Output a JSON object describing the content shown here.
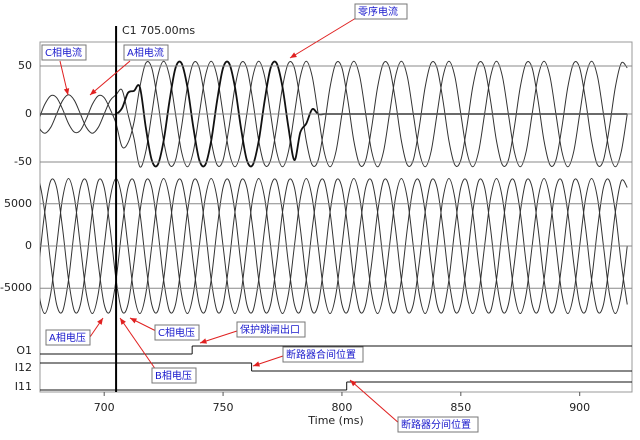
{
  "chart_data": {
    "type": "waveform",
    "title": "C1 705.00ms",
    "cursor": 705,
    "xlabel": "Time (ms)",
    "xlim": [
      673,
      922
    ],
    "xticks": [
      700,
      750,
      800,
      850,
      900
    ],
    "x": [
      670,
      672.5,
      675,
      677.5,
      680,
      682.5,
      685,
      687.5,
      690,
      692.5,
      695,
      697.5,
      700,
      702.5,
      705,
      707.5,
      710,
      712.5,
      715,
      717.5,
      720,
      722.5,
      725,
      727.5,
      730,
      732.5,
      735,
      737.5,
      740,
      742.5,
      745,
      747.5,
      750,
      752.5,
      755,
      757.5,
      760,
      762.5,
      765,
      767.5,
      770,
      772.5,
      775,
      777.5,
      780,
      782.5,
      785,
      787.5,
      790,
      792.5,
      795,
      797.5,
      800,
      802.5,
      805,
      807.5,
      810,
      812.5,
      815,
      817.5,
      820,
      822.5,
      825,
      827.5,
      830,
      832.5,
      835,
      837.5,
      840,
      842.5,
      845,
      847.5,
      850,
      852.5,
      855,
      857.5,
      860,
      862.5,
      865,
      867.5,
      870,
      872.5,
      875,
      877.5,
      880,
      882.5,
      885,
      887.5,
      890,
      892.5,
      895,
      897.5,
      900,
      902.5,
      905,
      907.5,
      910,
      912.5,
      915,
      917.5,
      920
    ],
    "panels": [
      {
        "ylim": [
          -75,
          75
        ],
        "yticks": [
          -50,
          0,
          50
        ],
        "series": [
          {
            "color": "#333333",
            "values": [
              0,
              -14,
              -20,
              -14,
              0,
              14,
              20,
              14,
              0,
              -14,
              -20,
              -14,
              0,
              14,
              20,
              25,
              0,
              -25,
              -55,
              -39,
              0,
              39,
              55,
              39,
              0,
              -39,
              -55,
              -39,
              0,
              39,
              55,
              39,
              0,
              -39,
              -55,
              -39,
              0,
              39,
              55,
              39,
              0,
              -39,
              -55,
              -39,
              0,
              39,
              55,
              39,
              0,
              -39,
              -55,
              -39,
              0,
              39,
              55,
              39,
              0,
              -39,
              -55,
              -39,
              0,
              39,
              55,
              39,
              0,
              -39,
              -55,
              -39,
              0,
              39,
              55,
              39,
              0,
              -39,
              -55,
              -39,
              0,
              39,
              55,
              39,
              0,
              -39,
              -55,
              -39,
              0,
              39,
              55,
              39,
              0,
              -39,
              -55,
              -39,
              0,
              39,
              55,
              39,
              0,
              -39,
              -55,
              -39,
              0
            ]
          },
          {
            "color": "#333333",
            "values": [
              -17,
              -5,
              10,
              19,
              17,
              5,
              -10,
              -19,
              -17,
              -5,
              10,
              19,
              17,
              5,
              -10,
              -34,
              -30,
              -9,
              28,
              53,
              48,
              14,
              -28,
              -53,
              -48,
              -14,
              28,
              53,
              48,
              14,
              -28,
              -53,
              -48,
              -14,
              28,
              53,
              48,
              14,
              -28,
              -53,
              -48,
              -14,
              28,
              53,
              48,
              14,
              -28,
              -53,
              -48,
              -14,
              28,
              53,
              48,
              14,
              -28,
              -53,
              -48,
              -14,
              28,
              53,
              48,
              14,
              -28,
              -53,
              -48,
              -14,
              28,
              53,
              48,
              14,
              -28,
              -53,
              -48,
              -14,
              28,
              53,
              48,
              14,
              -28,
              -53,
              -48,
              -14,
              28,
              53,
              48,
              14,
              -28,
              -53,
              -48,
              -14,
              28,
              53,
              48,
              14,
              -28,
              -53,
              -48,
              -14,
              28,
              53,
              48
            ]
          },
          {
            "color": "#111111",
            "values": [
              0,
              0,
              0,
              0,
              0,
              0,
              0,
              0,
              0,
              0,
              0,
              0,
              0,
              0,
              0,
              6,
              22,
              24,
              28,
              -14,
              -48,
              -53,
              -28,
              14,
              48,
              53,
              28,
              -14,
              -48,
              -53,
              -28,
              14,
              48,
              53,
              28,
              -14,
              -48,
              -53,
              -28,
              14,
              48,
              53,
              28,
              -14,
              -48,
              -19,
              -10,
              5,
              0,
              0,
              0,
              0,
              0,
              0,
              0,
              0,
              0,
              0,
              0,
              0,
              0,
              0,
              0,
              0,
              0,
              0,
              0,
              0,
              0,
              0,
              0,
              0,
              0,
              0,
              0,
              0,
              0,
              0,
              0,
              0,
              0,
              0,
              0,
              0,
              0,
              0,
              0,
              0,
              0,
              0,
              0,
              0,
              0,
              0,
              0,
              0,
              0,
              0,
              0,
              0,
              0
            ]
          }
        ]
      },
      {
        "ylim": [
          -9000,
          9000
        ],
        "yticks": [
          -5000,
          0,
          5000
        ],
        "series": [
          {
            "color": "#333333",
            "values": [
              0,
              -5657,
              -8000,
              -5657,
              0,
              5657,
              8000,
              5657,
              0,
              -5657,
              -8000,
              -5657,
              0,
              5657,
              8000,
              5657,
              0,
              -5657,
              -8000,
              -5657,
              0,
              5657,
              8000,
              5657,
              0,
              -5657,
              -8000,
              -5657,
              0,
              5657,
              8000,
              5657,
              0,
              -5657,
              -8000,
              -5657,
              0,
              5657,
              8000,
              5657,
              0,
              -5657,
              -8000,
              -5657,
              0,
              5657,
              8000,
              5657,
              0,
              -5657,
              -8000,
              -5657,
              0,
              5657,
              8000,
              5657,
              0,
              -5657,
              -8000,
              -5657,
              0,
              5657,
              8000,
              5657,
              0,
              -5657,
              -8000,
              -5657,
              0,
              5657,
              8000,
              5657,
              0,
              -5657,
              -8000,
              -5657,
              0,
              5657,
              8000,
              5657,
              0,
              -5657,
              -8000,
              -5657,
              0,
              5657,
              8000,
              5657,
              0,
              -5657,
              -8000,
              -5657,
              0,
              5657,
              8000,
              5657,
              0,
              -5657,
              -8000,
              -5657,
              0
            ]
          },
          {
            "color": "#333333",
            "values": [
              6928,
              7727,
              4000,
              -2071,
              -6928,
              -7727,
              -4000,
              2071,
              6928,
              7727,
              4000,
              -2071,
              -6928,
              -7727,
              -4000,
              2071,
              6928,
              7727,
              4000,
              -2071,
              -6928,
              -7727,
              -4000,
              2071,
              6928,
              7727,
              4000,
              -2071,
              -6928,
              -7727,
              -4000,
              2071,
              6928,
              7727,
              4000,
              -2071,
              -6928,
              -7727,
              -4000,
              2071,
              6928,
              7727,
              4000,
              -2071,
              -6928,
              -7727,
              -4000,
              2071,
              6928,
              7727,
              4000,
              -2071,
              -6928,
              -7727,
              -4000,
              2071,
              6928,
              7727,
              4000,
              -2071,
              -6928,
              -7727,
              -4000,
              2071,
              6928,
              7727,
              4000,
              -2071,
              -6928,
              -7727,
              -4000,
              2071,
              6928,
              7727,
              4000,
              -2071,
              -6928,
              -7727,
              -4000,
              2071,
              6928,
              7727,
              4000,
              -2071,
              -6928,
              -7727,
              -4000,
              2071,
              6928,
              7727,
              4000,
              -2071,
              -6928,
              -7727,
              -4000,
              2071,
              6928,
              7727,
              4000,
              -2071,
              -6928
            ]
          },
          {
            "color": "#333333",
            "values": [
              -6928,
              -2071,
              4000,
              7727,
              6928,
              2071,
              -4000,
              -7727,
              -6928,
              -2071,
              4000,
              7727,
              6928,
              2071,
              -4000,
              -7727,
              -6928,
              -2071,
              4000,
              7727,
              6928,
              2071,
              -4000,
              -7727,
              -6928,
              -2071,
              4000,
              7727,
              6928,
              2071,
              -4000,
              -7727,
              -6928,
              -2071,
              4000,
              7727,
              6928,
              2071,
              -4000,
              -7727,
              -6928,
              -2071,
              4000,
              7727,
              6928,
              2071,
              -4000,
              -7727,
              -6928,
              -2071,
              4000,
              7727,
              6928,
              2071,
              -4000,
              -7727,
              -6928,
              -2071,
              4000,
              7727,
              6928,
              2071,
              -4000,
              -7727,
              -6928,
              -2071,
              4000,
              7727,
              6928,
              2071,
              -4000,
              -7727,
              -6928,
              -2071,
              4000,
              7727,
              6928,
              2071,
              -4000,
              -7727,
              -6928,
              -2071,
              4000,
              7727,
              6928,
              2071,
              -4000,
              -7727,
              -6928,
              -2071,
              4000,
              7727,
              6928,
              2071,
              -4000,
              -7727,
              -6928,
              -2071,
              4000,
              7727,
              6928
            ]
          }
        ]
      }
    ],
    "digital": [
      {
        "name": "O1",
        "x": [
          670,
          737
        ],
        "values": [
          0,
          1
        ]
      },
      {
        "name": "I12",
        "x": [
          670,
          762
        ],
        "values": [
          1,
          0
        ]
      },
      {
        "name": "I11",
        "x": [
          670,
          802
        ],
        "values": [
          0,
          1
        ]
      }
    ],
    "annotations": [
      {
        "text": "零序电流"
      },
      {
        "text": "C相电流"
      },
      {
        "text": "A相电流"
      },
      {
        "text": "A相电压"
      },
      {
        "text": "C相电压"
      },
      {
        "text": "B相电压"
      },
      {
        "text": "保护跳闸出口"
      },
      {
        "text": "断路器合间位置"
      },
      {
        "text": "断路器分间位置"
      }
    ]
  }
}
